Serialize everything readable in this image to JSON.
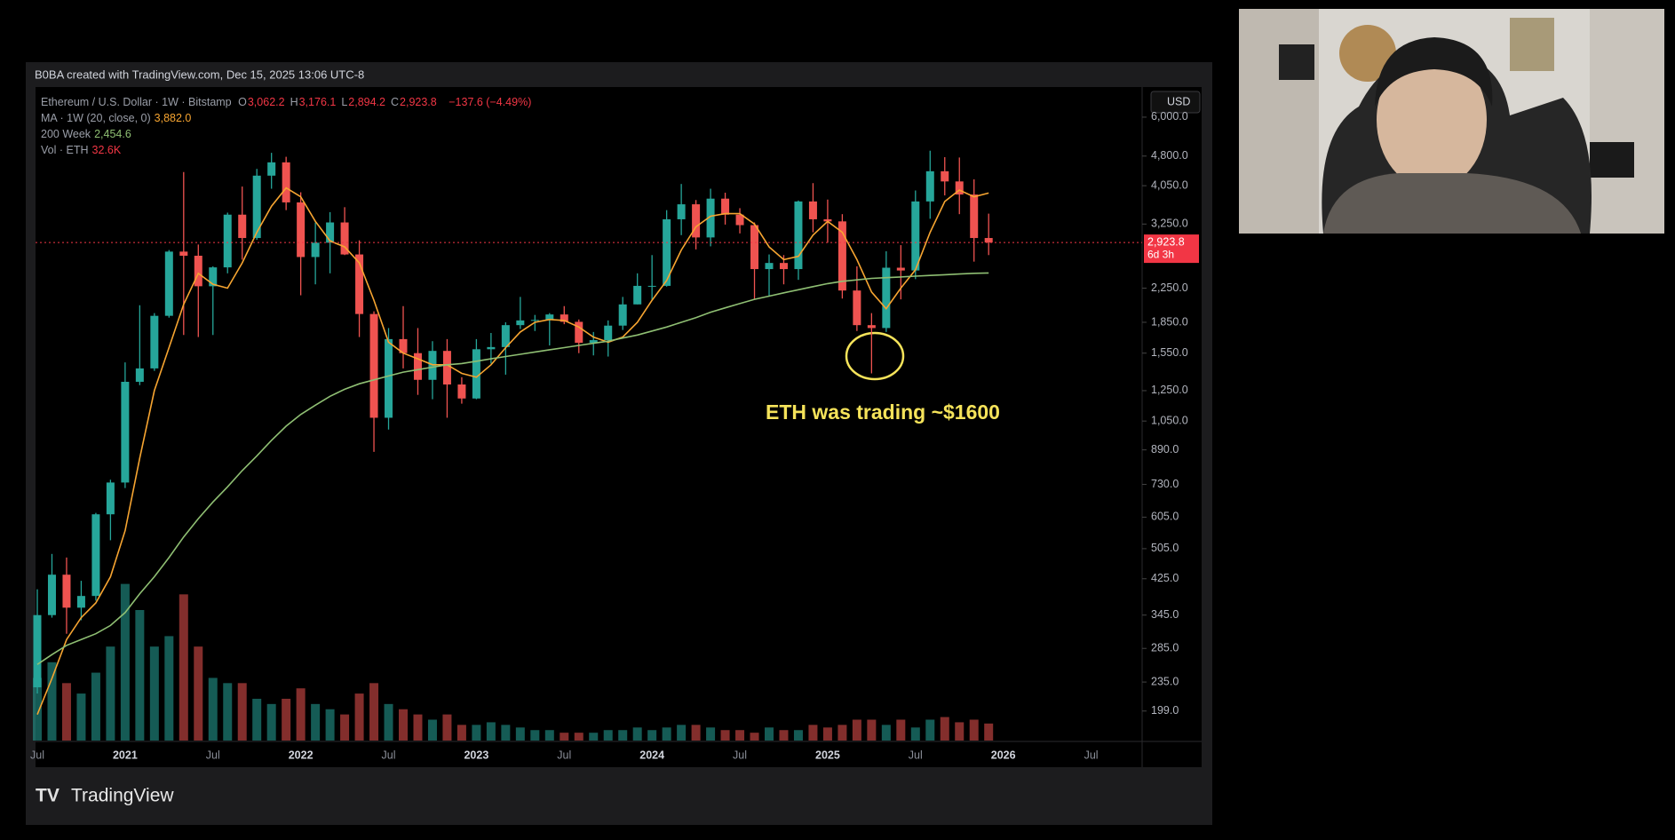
{
  "chart_data": {
    "type": "candlestick",
    "watermark": "B0BA created with TradingView.com, Dec 15, 2025 13:06 UTC-8",
    "symbol": "Ethereum / U.S. Dollar · 1W · Bitstamp",
    "ohlc": [
      {
        "key": "O",
        "value": "3,062.2"
      },
      {
        "key": "H",
        "value": "3,176.1"
      },
      {
        "key": "L",
        "value": "2,894.2"
      },
      {
        "key": "C",
        "value": "2,923.8"
      }
    ],
    "change": "−137.6 (−4.49%)",
    "currency": "USD",
    "logo": "TradingView",
    "annotation": "ETH was trading ~$1600",
    "log_scale": true,
    "grid": false,
    "up_color": "#26a69a",
    "down_color": "#ef5350",
    "categories": [
      "Jul",
      null,
      null,
      null,
      null,
      null,
      "2021",
      null,
      null,
      null,
      null,
      null,
      "Jul",
      null,
      null,
      null,
      null,
      null,
      "2022",
      null,
      null,
      null,
      null,
      null,
      "Jul",
      null,
      null,
      null,
      null,
      null,
      "2023",
      null,
      null,
      null,
      null,
      null,
      "Jul",
      null,
      null,
      null,
      null,
      null,
      "2024",
      null,
      null,
      null,
      null,
      null,
      "Jul",
      null,
      null,
      null,
      null,
      null,
      "2025",
      null,
      null,
      null,
      null,
      null,
      "Jul",
      null,
      null,
      null,
      null,
      null,
      "2026",
      null,
      null,
      null,
      null,
      null,
      "Jul",
      null,
      null,
      null
    ],
    "open": [
      228,
      345,
      435,
      360,
      385,
      615,
      738,
      1315,
      1420,
      1920,
      2775,
      2710,
      2275,
      2535,
      3430,
      3000,
      4290,
      4630,
      3680,
      2690,
      2920,
      3280,
      2730,
      1940,
      1070,
      1680,
      1550,
      1330,
      1570,
      1295,
      1195,
      1585,
      1605,
      1820,
      1870,
      1875,
      1935,
      1855,
      1645,
      1670,
      1815,
      2050,
      2280,
      2280,
      3340,
      3640,
      3010,
      3760,
      3430,
      3230,
      2510,
      2600,
      2510,
      3700,
      3340,
      3300,
      2220,
      1820,
      1790,
      2530,
      2490,
      3700,
      4400,
      4150,
      3850,
      3000,
      null,
      null,
      null,
      null,
      null,
      null,
      null,
      null,
      null,
      null
    ],
    "high": [
      400,
      490,
      480,
      420,
      620,
      750,
      1470,
      2040,
      1950,
      2800,
      4380,
      2890,
      2550,
      3470,
      4030,
      4460,
      4890,
      4780,
      3900,
      3280,
      3480,
      3580,
      2960,
      1970,
      1790,
      2030,
      1790,
      1660,
      1680,
      1350,
      1680,
      1740,
      1850,
      2140,
      1930,
      1950,
      2030,
      1880,
      1750,
      1870,
      2140,
      2450,
      2720,
      3520,
      4090,
      3730,
      3980,
      3890,
      3560,
      3280,
      2730,
      2720,
      3720,
      4110,
      3740,
      3440,
      2550,
      1950,
      2780,
      2880,
      3940,
      4950,
      4770,
      4760,
      4200,
      3450,
      null,
      null,
      null,
      null,
      null,
      null,
      null,
      null,
      null,
      null
    ],
    "low": [
      220,
      340,
      310,
      335,
      375,
      530,
      715,
      1290,
      1400,
      1900,
      1720,
      1700,
      1720,
      2450,
      2650,
      2970,
      3980,
      3520,
      2160,
      2300,
      2450,
      2720,
      1700,
      880,
      1000,
      1420,
      1220,
      1190,
      1070,
      1160,
      1190,
      1460,
      1370,
      1780,
      1760,
      1620,
      1830,
      1550,
      1530,
      1520,
      1770,
      2050,
      2100,
      2270,
      3050,
      2810,
      2860,
      3240,
      3080,
      2110,
      2150,
      2300,
      2360,
      3100,
      2920,
      2120,
      1760,
      1380,
      1750,
      2110,
      2370,
      3350,
      3830,
      3440,
      2620,
      2720,
      null,
      null,
      null,
      null,
      null,
      null,
      null,
      null,
      null,
      null
    ],
    "close": [
      345,
      435,
      360,
      385,
      615,
      738,
      1315,
      1420,
      1920,
      2775,
      2710,
      2275,
      2535,
      3430,
      3000,
      4290,
      4630,
      3680,
      2690,
      2920,
      3280,
      2730,
      1940,
      1070,
      1680,
      1550,
      1330,
      1570,
      1295,
      1195,
      1585,
      1605,
      1820,
      1870,
      1875,
      1935,
      1855,
      1645,
      1670,
      1815,
      2050,
      2280,
      2280,
      3340,
      3640,
      3010,
      3760,
      3430,
      3230,
      2510,
      2600,
      2510,
      3700,
      3340,
      3300,
      2220,
      1820,
      1790,
      2530,
      2490,
      3700,
      4400,
      4150,
      3850,
      3000,
      2923.8,
      null,
      null,
      null,
      null,
      null,
      null,
      null,
      null,
      null,
      null
    ],
    "series": [
      {
        "name": "MA · 1W (20, close, 0)",
        "color": "#f7a531",
        "last_label": "3,882.0",
        "values": [
          195,
          240,
          300,
          340,
          370,
          430,
          560,
          850,
          1250,
          1600,
          2050,
          2450,
          2300,
          2250,
          2600,
          3100,
          3600,
          4000,
          3800,
          3300,
          2950,
          2850,
          2600,
          2100,
          1650,
          1550,
          1500,
          1450,
          1450,
          1380,
          1350,
          1450,
          1600,
          1750,
          1850,
          1880,
          1870,
          1800,
          1700,
          1650,
          1700,
          1850,
          2100,
          2350,
          2800,
          3200,
          3400,
          3450,
          3450,
          3250,
          2850,
          2650,
          2700,
          3050,
          3300,
          3100,
          2650,
          2200,
          2000,
          2250,
          2500,
          3100,
          3700,
          3950,
          3800,
          3882.0,
          null,
          null,
          null,
          null,
          null,
          null,
          null,
          null,
          null,
          null
        ]
      },
      {
        "name": "200 Week",
        "color": "#8fbf73",
        "last_label": "2,454.6",
        "values": [
          260,
          275,
          290,
          300,
          310,
          325,
          350,
          390,
          430,
          480,
          540,
          600,
          660,
          720,
          790,
          860,
          940,
          1020,
          1090,
          1150,
          1210,
          1260,
          1300,
          1330,
          1360,
          1390,
          1410,
          1430,
          1450,
          1460,
          1480,
          1500,
          1520,
          1540,
          1560,
          1580,
          1600,
          1620,
          1640,
          1660,
          1690,
          1720,
          1760,
          1800,
          1850,
          1900,
          1960,
          2010,
          2060,
          2110,
          2150,
          2190,
          2230,
          2270,
          2310,
          2340,
          2360,
          2380,
          2390,
          2400,
          2410,
          2420,
          2430,
          2440,
          2450,
          2454.6,
          null,
          null,
          null,
          null,
          null,
          null,
          null,
          null,
          null,
          null
        ]
      }
    ],
    "volume": {
      "name": "Vol · ETH",
      "last_label": "32.6K",
      "ylim": [
        0,
        500000
      ],
      "values": [
        120000,
        150000,
        110000,
        90000,
        130000,
        180000,
        300000,
        250000,
        180000,
        200000,
        280000,
        180000,
        120000,
        110000,
        110000,
        80000,
        70000,
        80000,
        100000,
        70000,
        60000,
        50000,
        90000,
        110000,
        70000,
        60000,
        50000,
        40000,
        50000,
        30000,
        30000,
        35000,
        30000,
        25000,
        20000,
        20000,
        15000,
        15000,
        15000,
        20000,
        20000,
        25000,
        20000,
        25000,
        30000,
        30000,
        25000,
        20000,
        20000,
        15000,
        25000,
        20000,
        20000,
        30000,
        25000,
        30000,
        40000,
        40000,
        30000,
        40000,
        25000,
        40000,
        45000,
        35000,
        40000,
        32600,
        null,
        null,
        null,
        null,
        null,
        null,
        null,
        null,
        null,
        null
      ]
    },
    "last_price": {
      "value": 2923.8,
      "label": "2,923.8"
    },
    "countdown": "6d 3h",
    "ylim": [
      168,
      7060
    ],
    "yticks": [
      {
        "value": 6000,
        "label": "6,000.0"
      },
      {
        "value": 4800,
        "label": "4,800.0"
      },
      {
        "value": 4050,
        "label": "4,050.0"
      },
      {
        "value": 3250,
        "label": "3,250.0"
      },
      {
        "value": 2250,
        "label": "2,250.0"
      },
      {
        "value": 1850,
        "label": "1,850.0"
      },
      {
        "value": 1550,
        "label": "1,550.0"
      },
      {
        "value": 1250,
        "label": "1,250.0"
      },
      {
        "value": 1050,
        "label": "1,050.0"
      },
      {
        "value": 890,
        "label": "890.0"
      },
      {
        "value": 730,
        "label": "730.0"
      },
      {
        "value": 605,
        "label": "605.0"
      },
      {
        "value": 505,
        "label": "505.0"
      },
      {
        "value": 425,
        "label": "425.0"
      },
      {
        "value": 345,
        "label": "345.0"
      },
      {
        "value": 285,
        "label": "285.0"
      },
      {
        "value": 235,
        "label": "235.0"
      },
      {
        "value": 199,
        "label": "199.0"
      }
    ]
  }
}
